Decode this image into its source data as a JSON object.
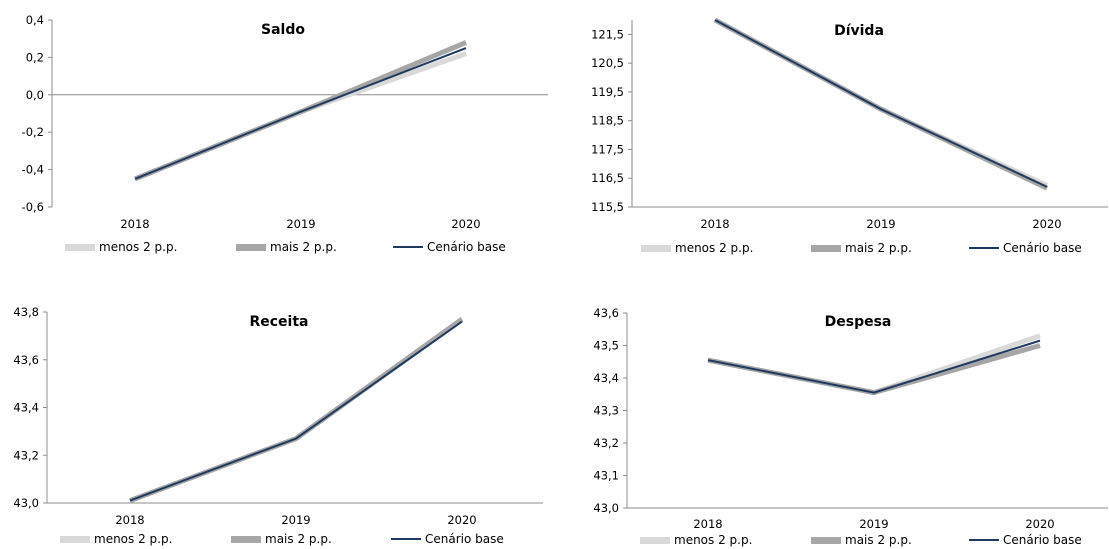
{
  "legend": {
    "labels": [
      "menos 2 p.p.",
      "mais 2 p.p.",
      "Cenário base"
    ],
    "colors": [
      "#d9d9d9",
      "#a6a6a6",
      "#1f3a5f"
    ]
  },
  "chart_data": [
    {
      "type": "line",
      "title": "Saldo",
      "categories": [
        "2018",
        "2019",
        "2020"
      ],
      "ylim": [
        -0.6,
        0.4
      ],
      "yticks": [
        "0,4",
        "0,2",
        "0,0",
        "-0,2",
        "-0,4",
        "-0,6"
      ],
      "ytick_values": [
        0.4,
        0.2,
        0.0,
        -0.2,
        -0.4,
        -0.6
      ],
      "zero_line": true,
      "series": [
        {
          "name": "menos 2 p.p.",
          "values": [
            -0.45,
            -0.09,
            0.22
          ]
        },
        {
          "name": "mais 2 p.p.",
          "values": [
            -0.45,
            -0.09,
            0.28
          ]
        },
        {
          "name": "Cenário base",
          "values": [
            -0.45,
            -0.09,
            0.25
          ]
        }
      ]
    },
    {
      "type": "line",
      "title": "Dívida",
      "categories": [
        "2018",
        "2019",
        "2020"
      ],
      "ylim": [
        115.5,
        122.0
      ],
      "yticks": [
        "121,5",
        "120,5",
        "119,5",
        "118,5",
        "117,5",
        "116,5",
        "115,5"
      ],
      "ytick_values": [
        121.5,
        120.5,
        119.5,
        118.5,
        117.5,
        116.5,
        115.5
      ],
      "series": [
        {
          "name": "menos 2 p.p.",
          "values": [
            122.0,
            118.9,
            116.25
          ]
        },
        {
          "name": "mais 2 p.p.",
          "values": [
            122.0,
            118.9,
            116.15
          ]
        },
        {
          "name": "Cenário base",
          "values": [
            122.0,
            118.9,
            116.2
          ]
        }
      ]
    },
    {
      "type": "line",
      "title": "Receita",
      "categories": [
        "2018",
        "2019",
        "2020"
      ],
      "ylim": [
        43.0,
        43.8
      ],
      "yticks": [
        "43,8",
        "43,6",
        "43,4",
        "43,2",
        "43,0"
      ],
      "ytick_values": [
        43.8,
        43.6,
        43.4,
        43.2,
        43.0
      ],
      "series": [
        {
          "name": "menos 2 p.p.",
          "values": [
            43.01,
            43.27,
            43.77
          ]
        },
        {
          "name": "mais 2 p.p.",
          "values": [
            43.01,
            43.27,
            43.77
          ]
        },
        {
          "name": "Cenário base",
          "values": [
            43.01,
            43.27,
            43.76
          ]
        }
      ]
    },
    {
      "type": "line",
      "title": "Despesa",
      "categories": [
        "2018",
        "2019",
        "2020"
      ],
      "ylim": [
        43.0,
        43.6
      ],
      "yticks": [
        "43,6",
        "43,5",
        "43,4",
        "43,3",
        "43,2",
        "43,1",
        "43,0"
      ],
      "ytick_values": [
        43.6,
        43.5,
        43.4,
        43.3,
        43.2,
        43.1,
        43.0
      ],
      "series": [
        {
          "name": "menos 2 p.p.",
          "values": [
            43.455,
            43.355,
            43.53
          ]
        },
        {
          "name": "mais 2 p.p.",
          "values": [
            43.455,
            43.355,
            43.5
          ]
        },
        {
          "name": "Cenário base",
          "values": [
            43.455,
            43.355,
            43.515
          ]
        }
      ]
    }
  ]
}
